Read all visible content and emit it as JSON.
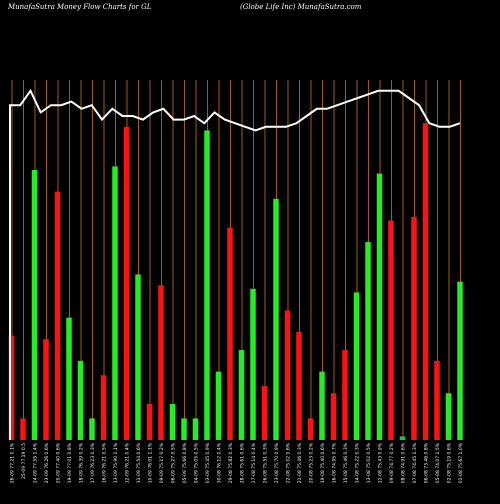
{
  "header": {
    "left": "MunafaSutra  Money Flow  Charts for GL",
    "right": "(Globe    Life    Inc) MunafaSutra.com"
  },
  "chart_data": {
    "type": "bar",
    "title": "MunafaSutra Money Flow Charts for GL",
    "subtitle": "(Globe Life Inc) MunafaSutra.com",
    "ylim": [
      0,
      100
    ],
    "grid": true,
    "colors": {
      "background": "#000000",
      "grid": "#cc7700",
      "up": "#22ee22",
      "down": "#ff1111",
      "neutral": "#00cc66",
      "line": "#ffffff"
    },
    "bars": [
      {
        "label": "26-09  77.21 0.1%",
        "value": 29,
        "color": "down"
      },
      {
        "label": "25-09  77.19 0.5",
        "value": 6,
        "color": "down"
      },
      {
        "label": "24-09  77.55 1.4%",
        "value": 75,
        "color": "up"
      },
      {
        "label": "23-09  76.26 0.6%",
        "value": 28,
        "color": "down"
      },
      {
        "label": "20-09  77.40 0.6%",
        "value": 69,
        "color": "down"
      },
      {
        "label": "19-09  77.01 0.8%",
        "value": 34,
        "color": "up"
      },
      {
        "label": "18-09  76.39 0.2%",
        "value": 22,
        "color": "up"
      },
      {
        "label": "17-09  76.23 0.3%",
        "value": 6,
        "color": "up"
      },
      {
        "label": "16-09  76.21 0.5%",
        "value": 18,
        "color": "down"
      },
      {
        "label": "13-09  75.90 1.1%",
        "value": 76,
        "color": "up"
      },
      {
        "label": "12-09  76.21 0.4%",
        "value": 87,
        "color": "down"
      },
      {
        "label": "11-09  75.54 0.6%",
        "value": 46,
        "color": "up"
      },
      {
        "label": "10-09  76.01 1.1%",
        "value": 10,
        "color": "down"
      },
      {
        "label": "09-09  75.17 0.2%",
        "value": 43,
        "color": "down"
      },
      {
        "label": "06-09  75.27 0.5%",
        "value": 10,
        "color": "up"
      },
      {
        "label": "05-09  75.66 0.8%",
        "value": 6,
        "color": "up"
      },
      {
        "label": "04-09  75.05 0.5%",
        "value": 6,
        "color": "up"
      },
      {
        "label": "03-09  75.45 0.9%",
        "value": 86,
        "color": "up"
      },
      {
        "label": "30-08  76.12 0.4%",
        "value": 19,
        "color": "up"
      },
      {
        "label": "29-08  75.82 0.3%",
        "value": 59,
        "color": "down"
      },
      {
        "label": "28-08  75.61 0.6%",
        "value": 25,
        "color": "up"
      },
      {
        "label": "27-08  75.14 0.4%",
        "value": 42,
        "color": "up"
      },
      {
        "label": "26-08  75.51 0.3%",
        "value": 15,
        "color": "down"
      },
      {
        "label": "23-08  75.70 0.9%",
        "value": 67,
        "color": "up"
      },
      {
        "label": "22-08  75.02 0.6%",
        "value": 36,
        "color": "down"
      },
      {
        "label": "21-08  75.46 0.3%",
        "value": 30,
        "color": "down"
      },
      {
        "label": "20-08  75.23 0.2%",
        "value": 6,
        "color": "down"
      },
      {
        "label": "19-08  75.40 0.6%",
        "value": 19,
        "color": "up"
      },
      {
        "label": "16-08  74.95 0.7%",
        "value": 13,
        "color": "down"
      },
      {
        "label": "15-08  75.46 0.3%",
        "value": 25,
        "color": "down"
      },
      {
        "label": "14-08  75.22 0.3%",
        "value": 41,
        "color": "up"
      },
      {
        "label": "13-08  75.02 0.5%",
        "value": 55,
        "color": "up"
      },
      {
        "label": "12-08  75.43 0.9%",
        "value": 74,
        "color": "up"
      },
      {
        "label": "09-08  74.77 0.2%",
        "value": 61,
        "color": "down"
      },
      {
        "label": "08-08  74.91 0.6%",
        "value": 1,
        "color": "neutral"
      },
      {
        "label": "07-08  74.45 1.3%",
        "value": 62,
        "color": "down"
      },
      {
        "label": "06-08  73.46 0.8%",
        "value": 88,
        "color": "down"
      },
      {
        "label": "05-08  74.07 1.5%",
        "value": 22,
        "color": "down"
      },
      {
        "label": "02-08  75.19 0.6%",
        "value": 13,
        "color": "up"
      },
      {
        "label": "01-08  75.67 1.0%",
        "value": 44,
        "color": "up"
      }
    ],
    "line": [
      93,
      93,
      97,
      91,
      93,
      93,
      94,
      92,
      93,
      89,
      92,
      90,
      90,
      89,
      91,
      92,
      89,
      89,
      90,
      88,
      91,
      89,
      88,
      87,
      86,
      87,
      87,
      87,
      88,
      90,
      92,
      92,
      93,
      94,
      95,
      96,
      97,
      97,
      97,
      95,
      93,
      88,
      87,
      87,
      88
    ]
  }
}
